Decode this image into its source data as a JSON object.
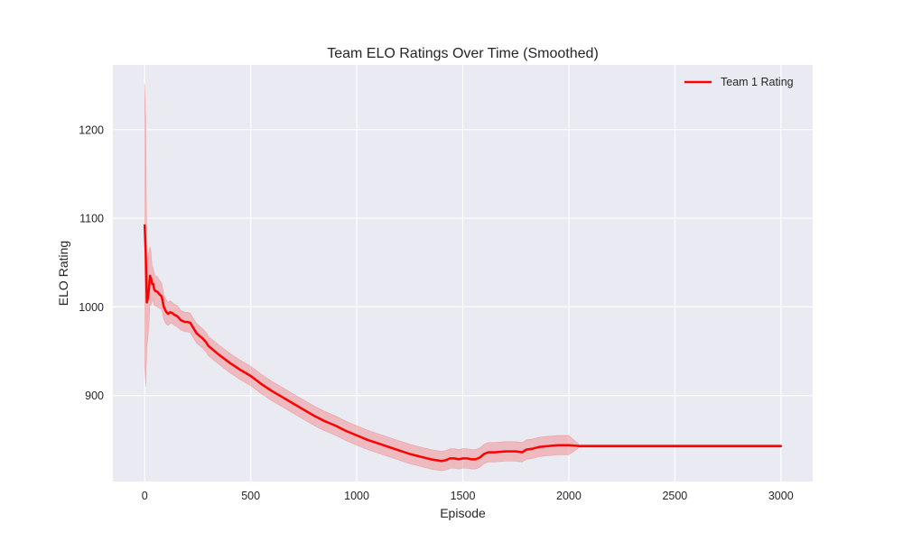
{
  "chart_data": {
    "type": "line",
    "title": "Team ELO Ratings Over Time (Smoothed)",
    "xlabel": "Episode",
    "ylabel": "ELO Rating",
    "xlim": [
      -150,
      3150
    ],
    "ylim": [
      803,
      1273
    ],
    "x_ticks": [
      0,
      500,
      1000,
      1500,
      2000,
      2500,
      3000
    ],
    "x_tick_labels": [
      "0",
      "500",
      "1000",
      "1500",
      "2000",
      "2500",
      "3000"
    ],
    "y_ticks": [
      900,
      1000,
      1100,
      1200
    ],
    "y_tick_labels": [
      "900",
      "1000",
      "1100",
      "1200"
    ],
    "grid": true,
    "legend_position": "top-right",
    "series": [
      {
        "name": "Team 1 Rating",
        "color": "#ff0000",
        "band_color": "#f08080",
        "x": [
          0,
          5,
          10,
          15,
          20,
          25,
          30,
          35,
          40,
          45,
          50,
          60,
          70,
          80,
          90,
          100,
          110,
          120,
          130,
          140,
          150,
          160,
          170,
          180,
          190,
          200,
          215,
          230,
          245,
          260,
          275,
          290,
          300,
          350,
          400,
          450,
          500,
          550,
          600,
          650,
          700,
          750,
          800,
          850,
          900,
          950,
          1000,
          1050,
          1100,
          1150,
          1200,
          1250,
          1300,
          1350,
          1400,
          1420,
          1440,
          1460,
          1480,
          1500,
          1520,
          1540,
          1560,
          1580,
          1600,
          1620,
          1650,
          1700,
          1750,
          1780,
          1800,
          1830,
          1860,
          1900,
          1950,
          2000,
          2050,
          2100,
          2200,
          2300,
          2400,
          2450,
          2500,
          2600,
          2700,
          2800,
          2900,
          3000
        ],
        "y": [
          1092,
          1060,
          1005,
          1010,
          1020,
          1035,
          1032,
          1026,
          1026,
          1020,
          1018,
          1017,
          1014,
          1012,
          1000,
          995,
          992,
          994,
          993,
          991,
          990,
          988,
          985,
          984,
          983,
          983,
          982,
          976,
          970,
          967,
          964,
          960,
          956,
          946,
          937,
          929,
          922,
          913,
          905,
          898,
          891,
          884,
          877,
          871,
          866,
          860,
          855,
          850,
          846,
          842,
          838,
          834,
          831,
          828,
          826,
          827,
          829,
          829,
          828,
          829,
          829,
          828,
          828,
          830,
          834,
          836,
          836,
          837,
          837,
          836,
          839,
          840,
          842,
          843,
          844,
          844,
          843,
          843,
          843,
          843,
          843,
          843,
          843,
          843,
          843,
          843,
          843,
          843
        ],
        "band": [
          160,
          150,
          50,
          45,
          42,
          33,
          30,
          20,
          18,
          18,
          17,
          17,
          16,
          15,
          14,
          14,
          13,
          13,
          12,
          12,
          12,
          12,
          11,
          11,
          11,
          11,
          11,
          11,
          11,
          11,
          11,
          11,
          11,
          11,
          11,
          11,
          11,
          11,
          11,
          11,
          11,
          11,
          11,
          11,
          11,
          11,
          11,
          11,
          11,
          11,
          11,
          11,
          11,
          11,
          11,
          11,
          11,
          11,
          11,
          11,
          11,
          11,
          11,
          11,
          11,
          11,
          11,
          11,
          11,
          11,
          11,
          11,
          11,
          11,
          11,
          11,
          1.5,
          1.5,
          1.5,
          1.5,
          1.5,
          1.5,
          1.5,
          1.5,
          1.5,
          1.5,
          1.5,
          1.5
        ]
      }
    ]
  }
}
